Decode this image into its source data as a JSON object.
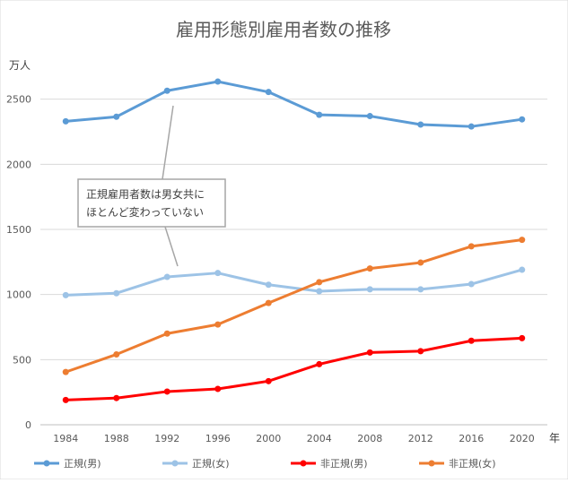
{
  "chart_data": {
    "type": "line",
    "title": "雇用形態別雇用者数の推移",
    "ylabel": "万人",
    "xlabel": "年",
    "ylim": [
      0,
      3000
    ],
    "yticks": [
      0,
      500,
      1000,
      1500,
      2000,
      2500
    ],
    "categories": [
      "1984",
      "1988",
      "1992",
      "1996",
      "2000",
      "2004",
      "2008",
      "2012",
      "2016",
      "2020"
    ],
    "series": [
      {
        "name": "正規(男)",
        "color": "#5b9bd5",
        "values": [
          2330,
          2365,
          2565,
          2635,
          2555,
          2380,
          2370,
          2305,
          2290,
          2345
        ]
      },
      {
        "name": "正規(女)",
        "color": "#9dc3e6",
        "values": [
          995,
          1010,
          1135,
          1165,
          1075,
          1025,
          1040,
          1040,
          1080,
          1190
        ]
      },
      {
        "name": "非正規(男)",
        "color": "#ff0000",
        "values": [
          190,
          205,
          255,
          275,
          335,
          465,
          555,
          565,
          645,
          665
        ]
      },
      {
        "name": "非正規(女)",
        "color": "#ed7d31",
        "values": [
          405,
          540,
          700,
          770,
          935,
          1095,
          1200,
          1245,
          1370,
          1420
        ]
      }
    ],
    "grid": true,
    "legend_position": "bottom",
    "annotation": {
      "lines": [
        "正規雇用者数は男女共に",
        "ほとんど変わっていない"
      ]
    }
  }
}
